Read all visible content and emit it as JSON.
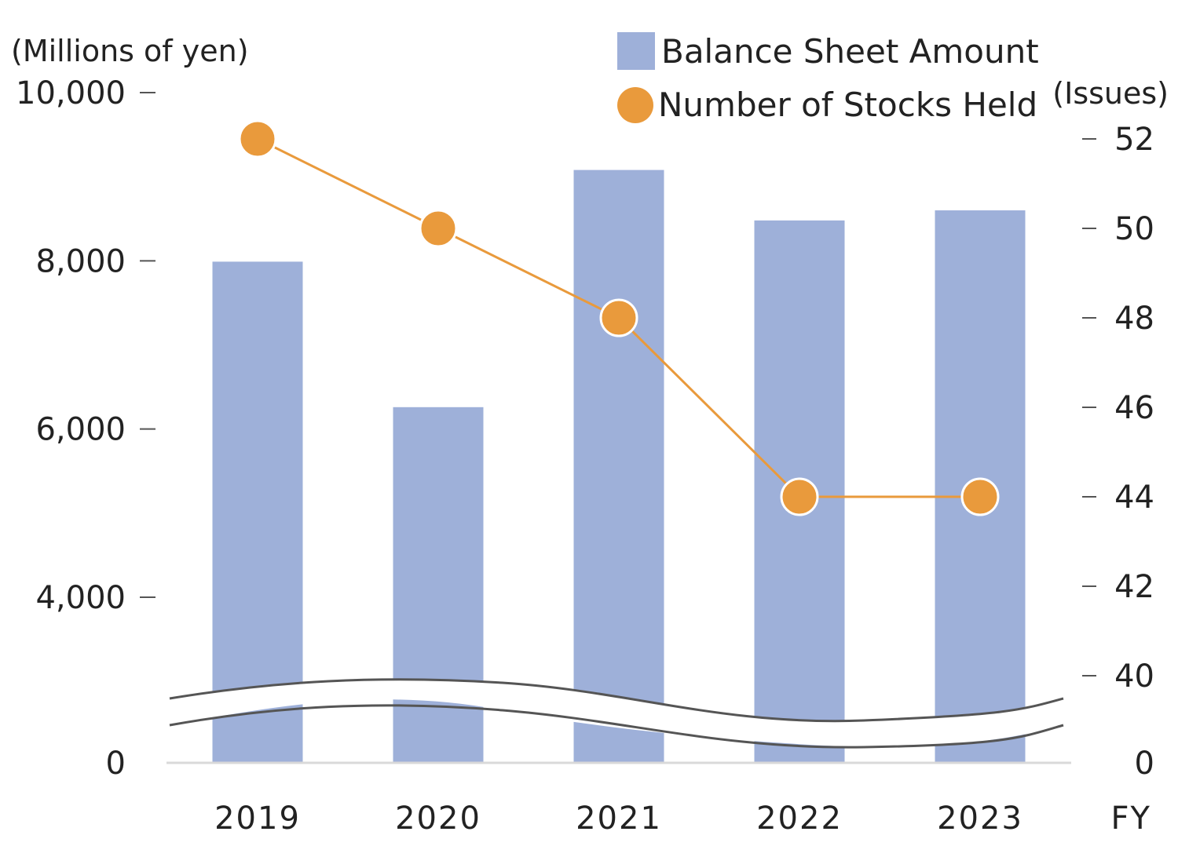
{
  "chart_data": {
    "type": "bar",
    "title": "",
    "categories": [
      "2019",
      "2020",
      "2021",
      "2022",
      "2023"
    ],
    "xlabel": "FY",
    "series": [
      {
        "name": "Balance Sheet Amount",
        "type": "bar",
        "axis": "left",
        "color": "#9eb0d9",
        "values": [
          7990,
          6260,
          9080,
          8480,
          8600
        ]
      },
      {
        "name": "Number of Stocks Held",
        "type": "line",
        "axis": "right",
        "color": "#e99a3c",
        "values": [
          52,
          50,
          48,
          44,
          44
        ]
      }
    ],
    "y_left": {
      "label": "(Millions of yen)",
      "ticks": [
        "0",
        "4,000",
        "6,000",
        "8,000",
        "10,000"
      ],
      "tick_values": [
        4000,
        6000,
        8000,
        10000
      ],
      "ylim": [
        4000,
        10000
      ],
      "axis_break": true
    },
    "y_right": {
      "label": "(Issues)",
      "ticks": [
        "0",
        "40",
        "42",
        "44",
        "46",
        "48",
        "50",
        "52"
      ],
      "tick_values": [
        40,
        42,
        44,
        46,
        48,
        50,
        52
      ],
      "ylim": [
        40,
        52
      ],
      "axis_break": true
    },
    "legend_position": "top-right",
    "grid": false
  }
}
